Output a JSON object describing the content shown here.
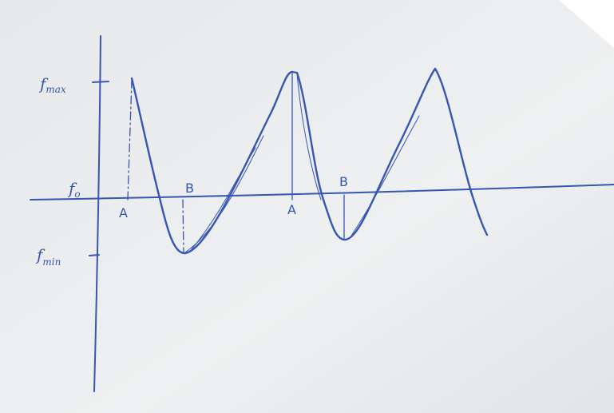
{
  "axis_labels": {
    "max": {
      "base": "f",
      "sub": "max"
    },
    "zero": {
      "base": "f",
      "sub": "o"
    },
    "min": {
      "base": "f",
      "sub": "min"
    }
  },
  "points": [
    "A",
    "B",
    "A",
    "B"
  ]
}
